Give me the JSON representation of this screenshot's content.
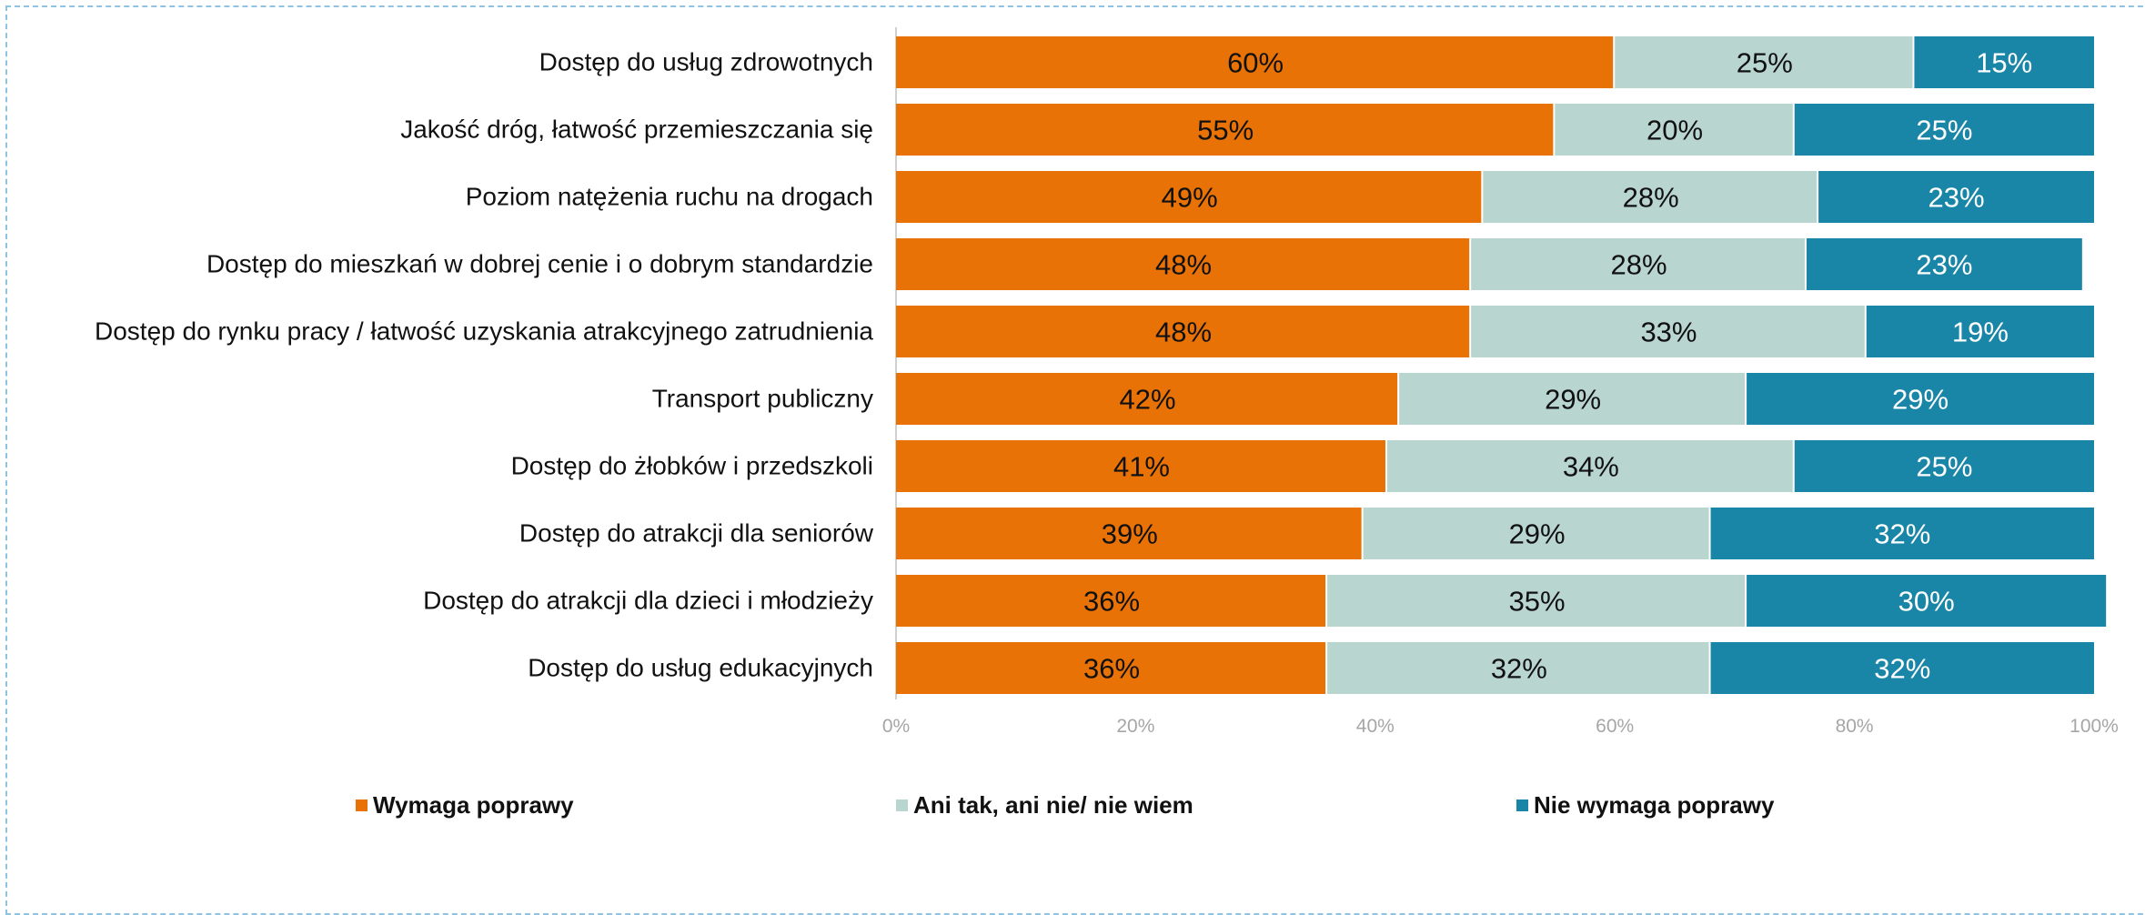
{
  "chart_data": {
    "type": "bar",
    "orientation": "horizontal",
    "stacked": true,
    "categories": [
      "Dostęp do usług zdrowotnych",
      "Jakość dróg, łatwość przemieszczania się",
      "Poziom natężenia ruchu na drogach",
      "Dostęp do mieszkań w dobrej cenie i o dobrym standardzie",
      "Dostęp do rynku pracy / łatwość uzyskania atrakcyjnego zatrudnienia",
      "Transport publiczny",
      "Dostęp do żłobków i przedszkoli",
      "Dostęp do atrakcji dla seniorów",
      "Dostęp do atrakcji dla dzieci i młodzieży",
      "Dostęp do usług edukacyjnych"
    ],
    "series": [
      {
        "name": "Wymaga poprawy",
        "color": "#e97207",
        "label_color": "#111111",
        "values": [
          60,
          55,
          49,
          48,
          48,
          42,
          41,
          39,
          36,
          36
        ],
        "labels": [
          "60%",
          "55%",
          "49%",
          "48%",
          "48%",
          "42%",
          "41%",
          "39%",
          "36%",
          "36%"
        ]
      },
      {
        "name": "Ani tak, ani nie/ nie wiem",
        "color": "#b9d5cf",
        "label_color": "#111111",
        "values": [
          25,
          20,
          28,
          28,
          33,
          29,
          34,
          29,
          35,
          32
        ],
        "labels": [
          "25%",
          "20%",
          "28%",
          "28%",
          "33%",
          "29%",
          "34%",
          "29%",
          "35%",
          "32%"
        ]
      },
      {
        "name": "Nie wymaga poprawy",
        "color": "#1a86a7",
        "label_color": "#ffffff",
        "values": [
          15,
          25,
          23,
          23,
          19,
          29,
          25,
          32,
          30,
          32
        ],
        "labels": [
          "15%",
          "25%",
          "23%",
          "23%",
          "19%",
          "29%",
          "25%",
          "32%",
          "30%",
          "32%"
        ]
      }
    ],
    "x_ticks": [
      "0%",
      "20%",
      "40%",
      "60%",
      "80%",
      "100%"
    ],
    "xlim": [
      0,
      100
    ],
    "grid": false,
    "legend_position": "bottom"
  }
}
